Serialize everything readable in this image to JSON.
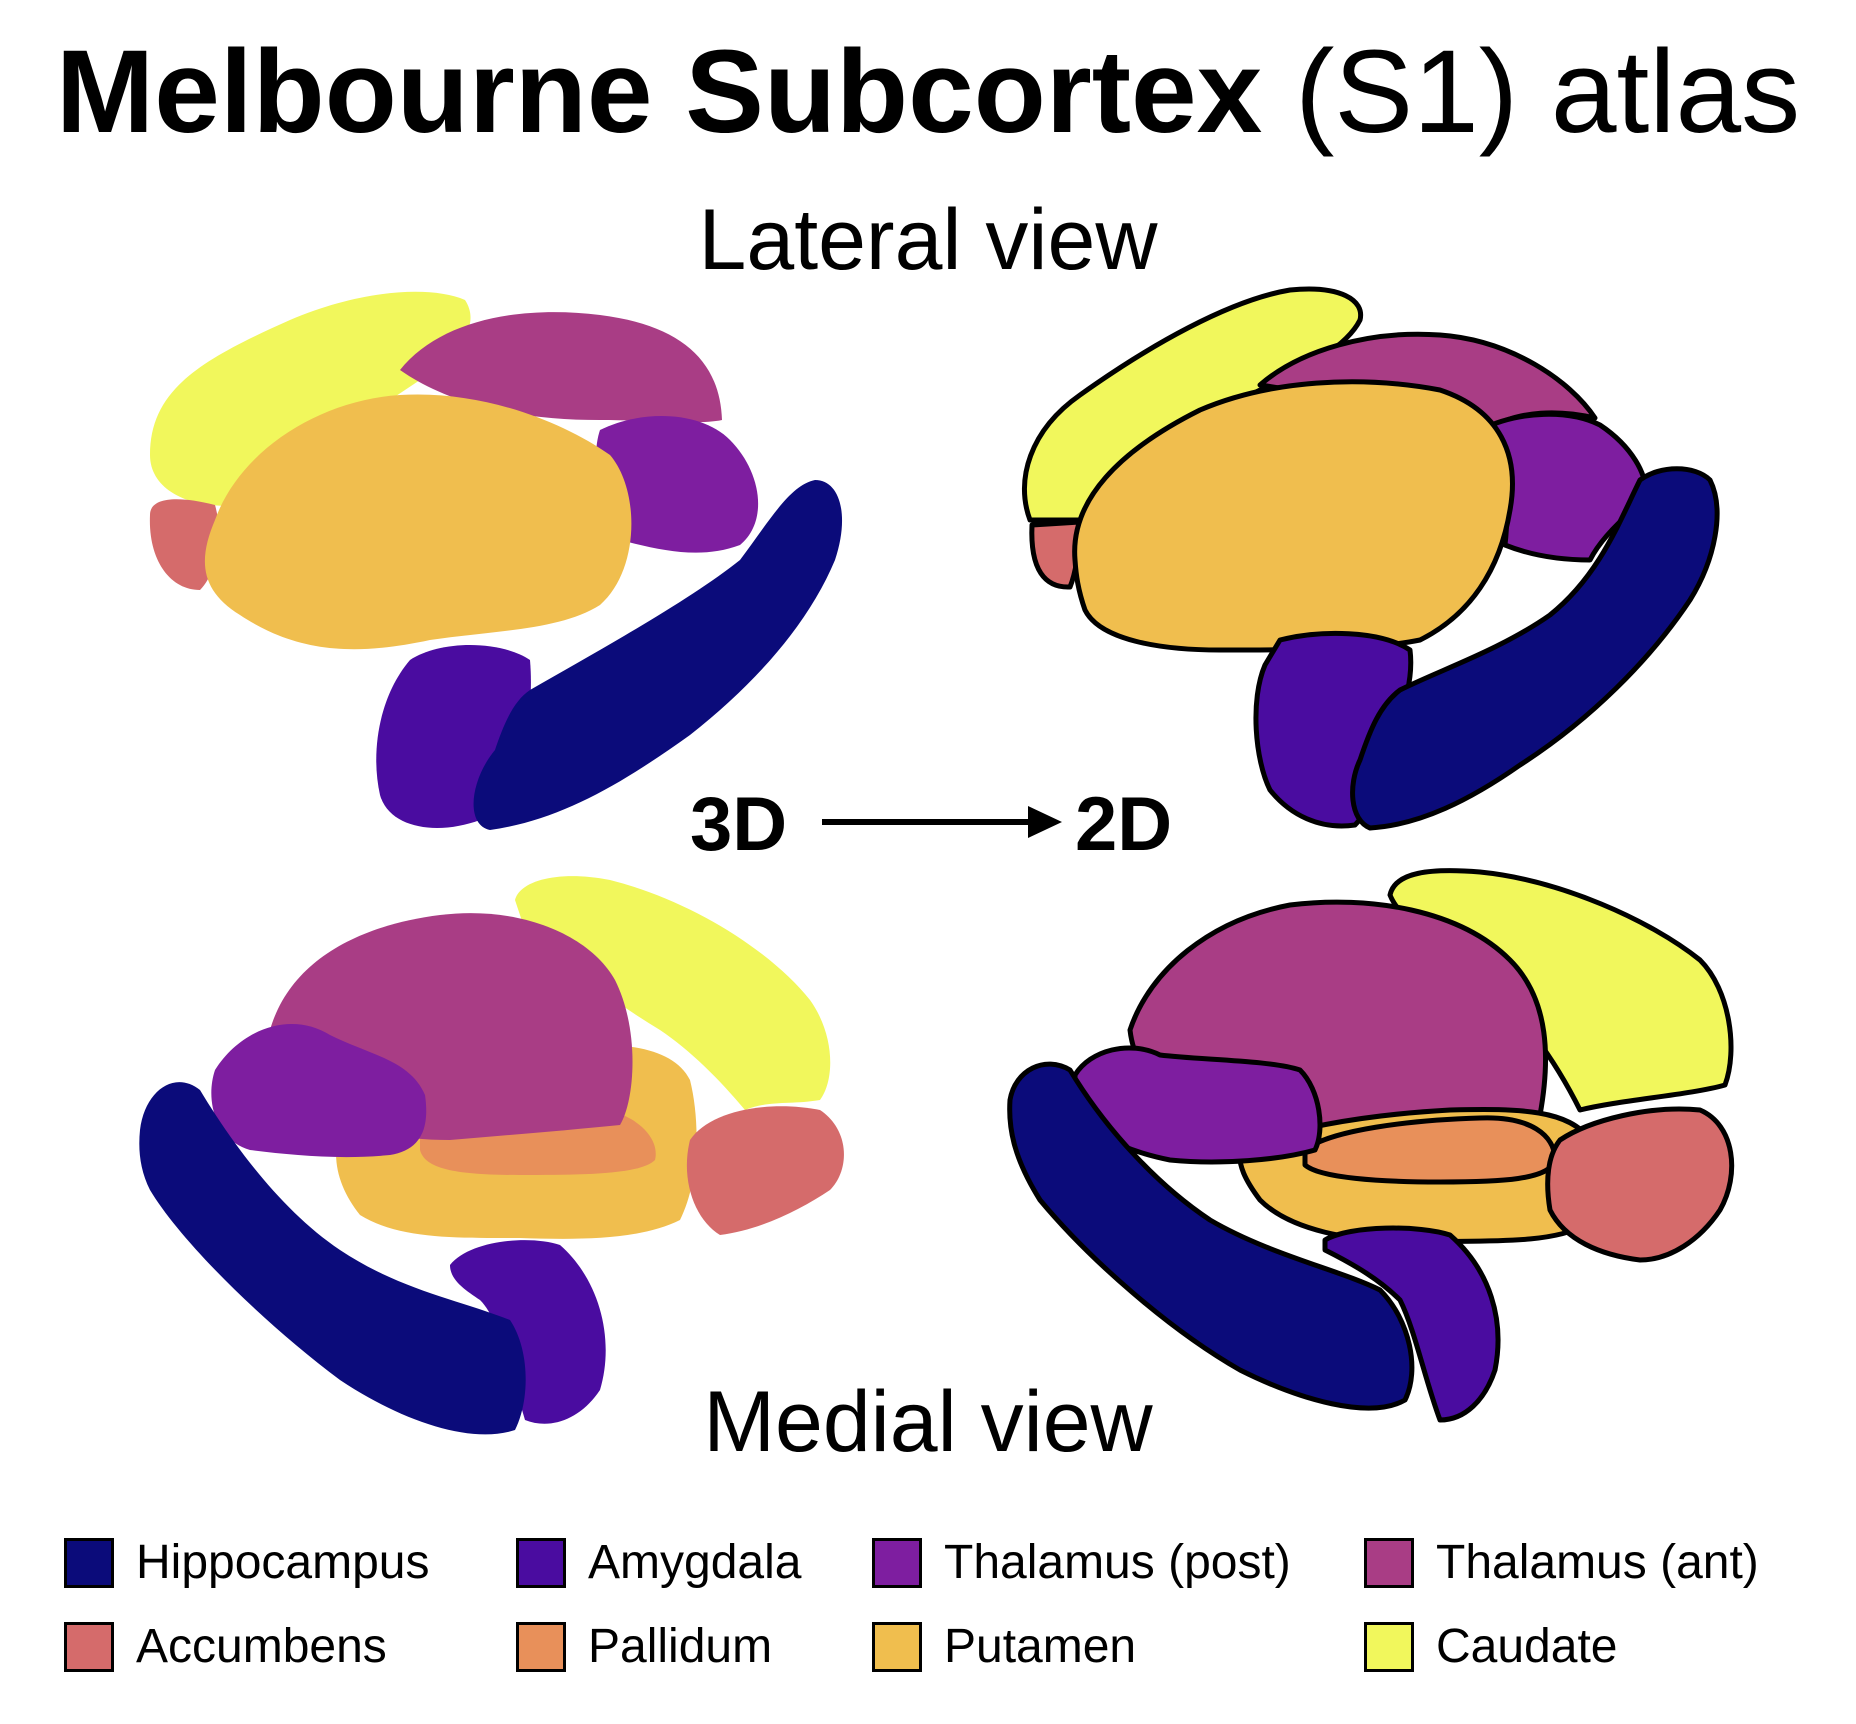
{
  "title": {
    "bold": "Melbourne Subcortex",
    "normal": "(S1) atlas"
  },
  "views": {
    "lateral": "Lateral view",
    "medial": "Medial view"
  },
  "conversion": {
    "from": "3D",
    "to": "2D"
  },
  "colors": {
    "hippocampus": "#0b0b7a",
    "amygdala": "#4a0ca0",
    "thalamus_post": "#7e1ea0",
    "thalamus_ant": "#a93d85",
    "accumbens": "#d56b6b",
    "pallidum": "#e8905a",
    "putamen": "#f0be4e",
    "caudate": "#f1f75c",
    "stroke": "#000000"
  },
  "legend": [
    {
      "label": "Hippocampus",
      "color": "#0b0b7a"
    },
    {
      "label": "Amygdala",
      "color": "#4a0ca0"
    },
    {
      "label": "Thalamus (post)",
      "color": "#7e1ea0"
    },
    {
      "label": "Thalamus (ant)",
      "color": "#a93d85"
    },
    {
      "label": "Accumbens",
      "color": "#d56b6b"
    },
    {
      "label": "Pallidum",
      "color": "#e8905a"
    },
    {
      "label": "Putamen",
      "color": "#f0be4e"
    },
    {
      "label": "Caudate",
      "color": "#f1f75c"
    }
  ]
}
